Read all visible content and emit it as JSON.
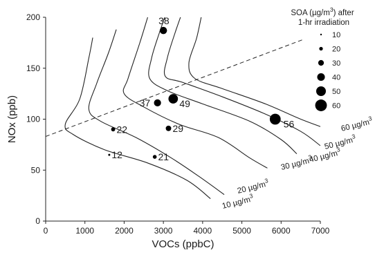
{
  "chart_data": {
    "type": "scatter",
    "xlabel": "VOCs (ppbC)",
    "ylabel": "NOx (ppb)",
    "xlim": [
      0,
      7000
    ],
    "ylim": [
      0,
      200
    ],
    "x_ticks": [
      "0",
      "1000",
      "2000",
      "3000",
      "4000",
      "5000",
      "6000",
      "7000"
    ],
    "y_ticks": [
      "0",
      "50",
      "100",
      "150",
      "200"
    ],
    "points": [
      {
        "voc": 3000,
        "nox": 187,
        "soa": 38
      },
      {
        "voc": 3250,
        "nox": 120,
        "soa": 49
      },
      {
        "voc": 2850,
        "nox": 116,
        "soa": 37
      },
      {
        "voc": 5850,
        "nox": 100,
        "soa": 56
      },
      {
        "voc": 1720,
        "nox": 90,
        "soa": 22
      },
      {
        "voc": 3130,
        "nox": 91,
        "soa": 29
      },
      {
        "voc": 1620,
        "nox": 65,
        "soa": 12
      },
      {
        "voc": 2780,
        "nox": 63,
        "soa": 21
      }
    ],
    "isopleths": [
      {
        "label": "10 µg/m³",
        "value": 10,
        "path": [
          [
            1200,
            180
          ],
          [
            1100,
            160
          ],
          [
            870,
            120
          ],
          [
            500,
            95
          ],
          [
            700,
            85
          ],
          [
            1500,
            70
          ],
          [
            2600,
            57
          ],
          [
            3600,
            40
          ],
          [
            4200,
            22
          ]
        ]
      },
      {
        "label": "20 µg/m³",
        "value": 20,
        "path": [
          [
            1800,
            188
          ],
          [
            1600,
            165
          ],
          [
            1300,
            135
          ],
          [
            1100,
            110
          ],
          [
            1400,
            98
          ],
          [
            2300,
            82
          ],
          [
            3200,
            62
          ],
          [
            3900,
            44
          ],
          [
            4550,
            26
          ]
        ]
      },
      {
        "label": "30 µg/m³",
        "value": 30,
        "path": [
          [
            2600,
            200
          ],
          [
            2400,
            175
          ],
          [
            2100,
            140
          ],
          [
            2000,
            125
          ],
          [
            2500,
            112
          ],
          [
            3400,
            95
          ],
          [
            4400,
            82
          ],
          [
            5200,
            62
          ],
          [
            5650,
            52
          ]
        ]
      },
      {
        "label": "40 µg/m³",
        "value": 40,
        "path": [
          [
            3100,
            207
          ],
          [
            2900,
            185
          ],
          [
            2700,
            160
          ],
          [
            2650,
            140
          ],
          [
            3100,
            128
          ],
          [
            4000,
            115
          ],
          [
            5200,
            98
          ],
          [
            6000,
            80
          ],
          [
            6400,
            66
          ]
        ]
      },
      {
        "label": "50 µg/m³",
        "value": 50,
        "path": [
          [
            3500,
            207
          ],
          [
            3300,
            185
          ],
          [
            3100,
            160
          ],
          [
            3050,
            142
          ],
          [
            3500,
            136
          ],
          [
            4500,
            122
          ],
          [
            5600,
            105
          ],
          [
            6500,
            88
          ],
          [
            7000,
            74
          ]
        ]
      },
      {
        "label": "60 µg/m³",
        "value": 60,
        "path": [
          [
            4000,
            207
          ],
          [
            3850,
            180
          ],
          [
            3650,
            155
          ],
          [
            3800,
            140
          ],
          [
            4500,
            130
          ],
          [
            5600,
            115
          ],
          [
            6500,
            100
          ],
          [
            7200,
            90
          ]
        ]
      }
    ],
    "dashed_line": [
      [
        0,
        83
      ],
      [
        6550,
        178
      ]
    ],
    "legend": {
      "title": [
        "SOA (µg/m³) after",
        "1-hr irradiation"
      ],
      "values": [
        10,
        20,
        30,
        40,
        50,
        60
      ],
      "placement": "top-right"
    }
  }
}
